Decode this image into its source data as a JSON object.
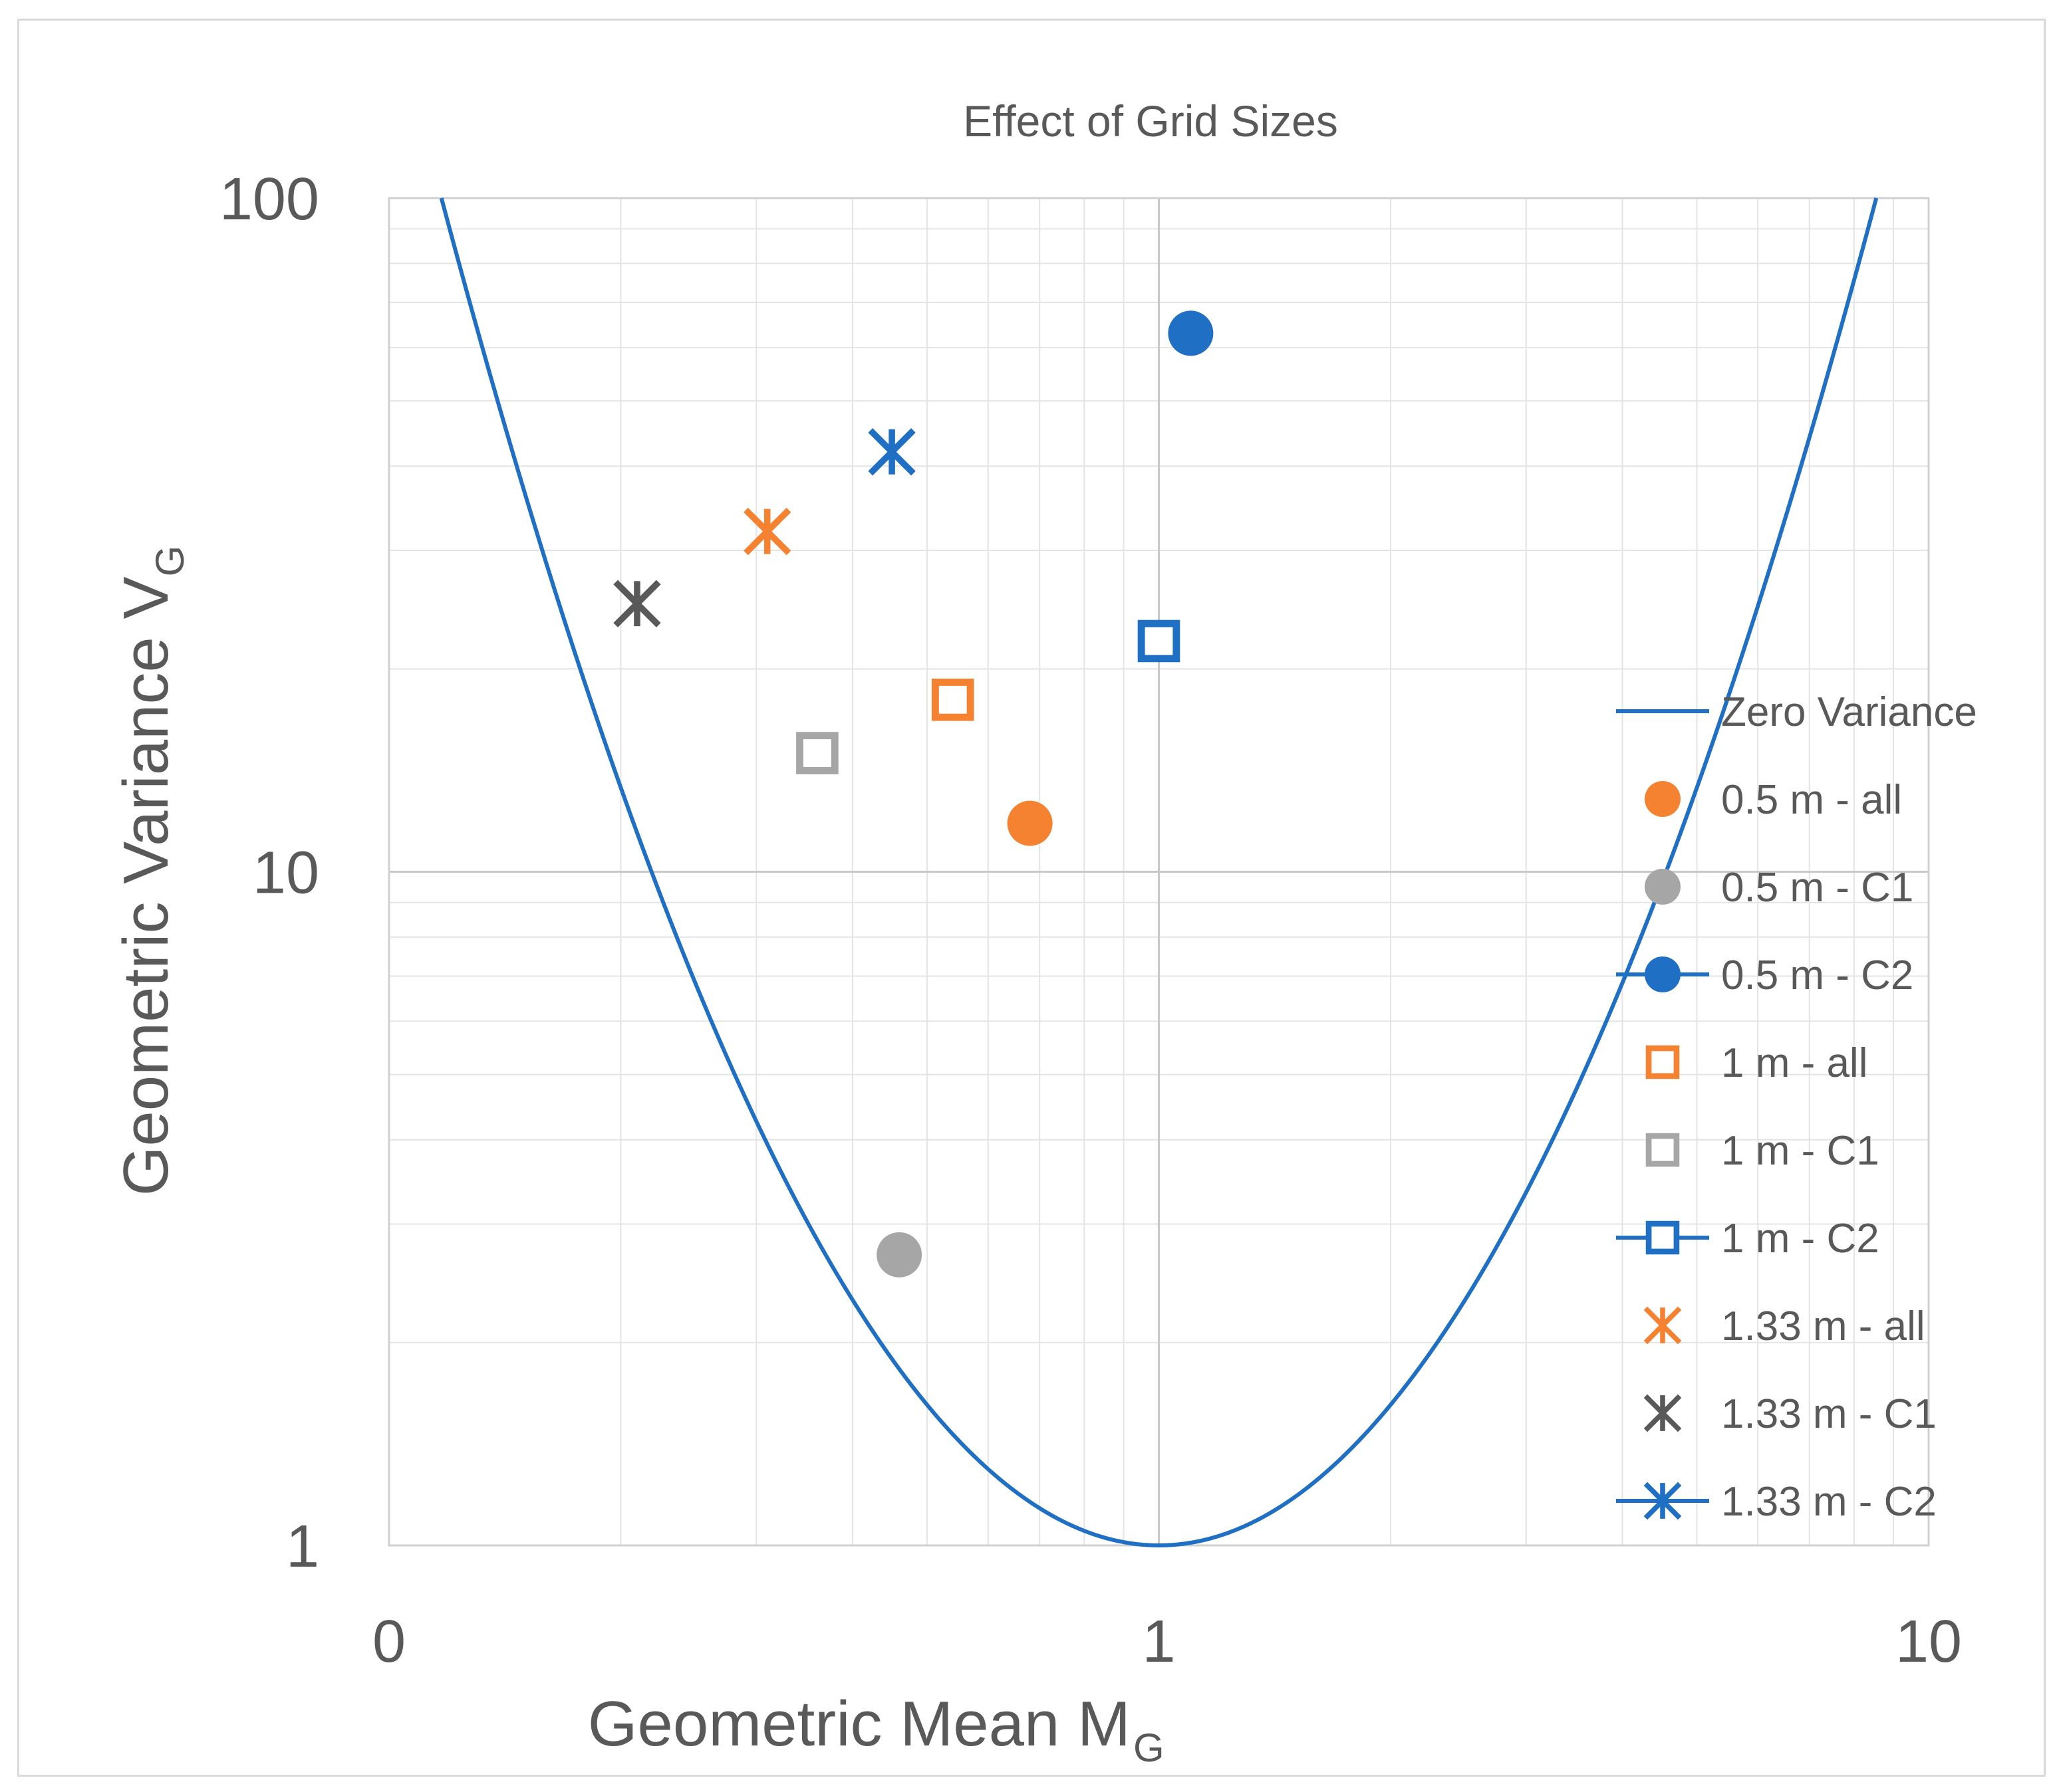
{
  "chart_data": {
    "type": "scatter",
    "title": "Effect of Grid Sizes",
    "xlabel": "Geometric Mean M",
    "xlabel_sub": "G",
    "ylabel": "Geometric Variance V",
    "ylabel_sub": "G",
    "x_scale": "log",
    "y_scale": "log",
    "xlim": [
      0.1,
      10
    ],
    "ylim": [
      1,
      100
    ],
    "x_ticks": [
      {
        "value": 0.1,
        "label": "0"
      },
      {
        "value": 1,
        "label": "1"
      },
      {
        "value": 10,
        "label": "10"
      }
    ],
    "y_ticks": [
      {
        "value": 1,
        "label": "1"
      },
      {
        "value": 10,
        "label": "10"
      },
      {
        "value": 100,
        "label": "100"
      }
    ],
    "grid": true,
    "legend_position": "right",
    "curve": {
      "name": "Zero Variance",
      "relation": "V_G = exp((ln M_G)^2)",
      "color": "#1f6fc5"
    },
    "series": [
      {
        "name": "0.5 m - all",
        "marker": "circle-filled",
        "color": "#f58231",
        "line": false,
        "points": [
          {
            "x": 0.68,
            "y": 11.8
          }
        ]
      },
      {
        "name": "0.5 m - C1",
        "marker": "circle-filled",
        "color": "#a6a6a6",
        "line": false,
        "points": [
          {
            "x": 0.46,
            "y": 2.7
          }
        ]
      },
      {
        "name": "0.5 m - C2",
        "marker": "circle-filled",
        "color": "#1f6fc5",
        "line": true,
        "points": [
          {
            "x": 1.1,
            "y": 63
          }
        ]
      },
      {
        "name": "1 m - all",
        "marker": "square-open",
        "color": "#f58231",
        "line": false,
        "points": [
          {
            "x": 0.54,
            "y": 18
          }
        ]
      },
      {
        "name": "1 m - C1",
        "marker": "square-open",
        "color": "#a6a6a6",
        "line": false,
        "points": [
          {
            "x": 0.36,
            "y": 15
          }
        ]
      },
      {
        "name": "1 m - C2",
        "marker": "square-open",
        "color": "#1f6fc5",
        "line": true,
        "points": [
          {
            "x": 1.0,
            "y": 22
          }
        ]
      },
      {
        "name": "1.33 m - all",
        "marker": "asterisk",
        "color": "#f58231",
        "line": false,
        "points": [
          {
            "x": 0.31,
            "y": 32
          }
        ]
      },
      {
        "name": "1.33 m - C1",
        "marker": "asterisk",
        "color": "#595959",
        "line": false,
        "points": [
          {
            "x": 0.21,
            "y": 25
          }
        ]
      },
      {
        "name": "1.33 m - C2",
        "marker": "asterisk",
        "color": "#1f6fc5",
        "line": true,
        "points": [
          {
            "x": 0.45,
            "y": 42
          }
        ]
      }
    ]
  }
}
